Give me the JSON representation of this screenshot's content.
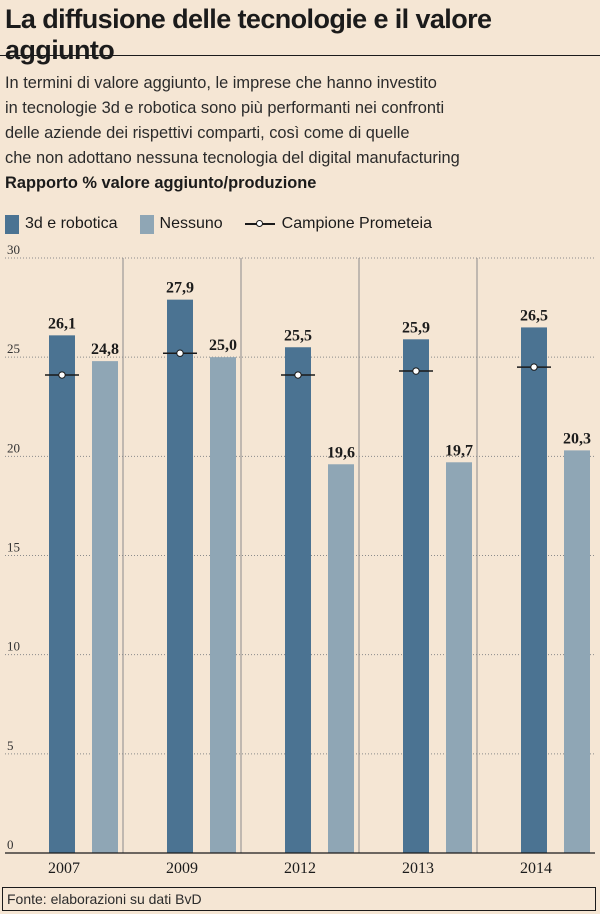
{
  "header": {
    "title": "La diffusione delle tecnologie e il valore aggiunto",
    "subtitle_lines": [
      "In termini di valore aggiunto, le imprese che hanno investito",
      "in tecnologie 3d e robotica sono più performanti nei confronti",
      "delle aziende dei rispettivi comparti, così come di quelle",
      "che non adottano nessuna tecnologia del digital manufacturing"
    ],
    "measure": "Rapporto % valore aggiunto/produzione"
  },
  "legend": {
    "items": [
      {
        "label": "3d e robotica",
        "color": "#4b7392",
        "kind": "bar"
      },
      {
        "label": "Nessuno",
        "color": "#8fa6b5",
        "kind": "bar"
      },
      {
        "label": "Campione Prometeia",
        "kind": "line-marker"
      }
    ]
  },
  "chart_data": {
    "type": "bar",
    "categories": [
      "2007",
      "2009",
      "2012",
      "2013",
      "2014"
    ],
    "series": [
      {
        "name": "3d e robotica",
        "values": [
          26.1,
          27.9,
          25.5,
          25.9,
          26.5
        ],
        "labels": [
          "26,1",
          "27,9",
          "25,5",
          "25,9",
          "26,5"
        ],
        "color": "#4b7392"
      },
      {
        "name": "Nessuno",
        "values": [
          24.8,
          25.0,
          19.6,
          19.7,
          20.3
        ],
        "labels": [
          "24,8",
          "25,0",
          "19,6",
          "19,7",
          "20,3"
        ],
        "color": "#8fa6b5"
      },
      {
        "name": "Campione Prometeia",
        "type": "marker",
        "values": [
          24.1,
          25.2,
          24.1,
          24.3,
          24.5
        ]
      }
    ],
    "ylim": [
      0,
      30
    ],
    "yticks": [
      0,
      5,
      10,
      15,
      20,
      25,
      30
    ],
    "ytick_labels": [
      "0",
      "5",
      "10",
      "15",
      "20",
      "25",
      "30"
    ],
    "grid": true
  },
  "footer": {
    "source": "Fonte: elaborazioni su dati BvD"
  }
}
